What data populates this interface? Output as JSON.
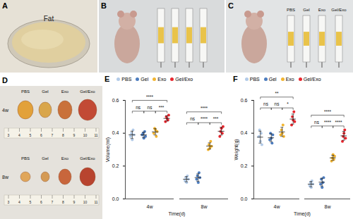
{
  "panels": {
    "A": {
      "label": "A",
      "text": "Fat"
    },
    "B": {
      "label": "B"
    },
    "C": {
      "label": "C",
      "syringe_labels": [
        "PBS",
        "Gel",
        "Exo",
        "Gel/Exo"
      ]
    },
    "D": {
      "label": "D",
      "groups": [
        "PBS",
        "Gel",
        "Exo",
        "Gel/Exo"
      ],
      "rows": [
        "4w",
        "8w"
      ],
      "ruler_labels": [
        [
          "3",
          "4",
          "5",
          "6",
          "7",
          "8",
          "9",
          "10",
          "11"
        ],
        [
          "3",
          "4",
          "5",
          "6",
          "7",
          "8",
          "9",
          "10",
          "11"
        ]
      ]
    }
  },
  "chart_data": [
    {
      "type": "scatter",
      "title": "E",
      "x_label": "Time(d)",
      "y_label": "Volume(ml)",
      "categories": [
        "4w",
        "8w"
      ],
      "series": [
        {
          "name": "PBS",
          "color": "#b3cbe8",
          "values": [
            [
              0.38,
              0.4,
              0.36,
              0.42,
              0.39
            ],
            [
              0.11,
              0.13,
              0.1,
              0.14,
              0.12
            ]
          ]
        },
        {
          "name": "Gel",
          "color": "#4d7dbf",
          "values": [
            [
              0.39,
              0.4,
              0.37,
              0.41,
              0.38
            ],
            [
              0.12,
              0.14,
              0.1,
              0.16,
              0.13
            ]
          ]
        },
        {
          "name": "Exo",
          "color": "#f2b531",
          "values": [
            [
              0.4,
              0.43,
              0.42,
              0.38,
              0.41
            ],
            [
              0.3,
              0.33,
              0.31,
              0.35,
              0.32
            ]
          ]
        },
        {
          "name": "Gel/Exo",
          "color": "#e8262e",
          "values": [
            [
              0.47,
              0.5,
              0.49,
              0.48,
              0.51
            ],
            [
              0.38,
              0.41,
              0.43,
              0.4,
              0.44
            ]
          ]
        }
      ],
      "ylim": [
        0,
        0.6
      ],
      "yticks": [
        {
          "value": 0,
          "label": "0.0"
        },
        0.2,
        0.4,
        0.6
      ],
      "annotations": [
        {
          "category": "4w",
          "from": "PBS",
          "to": "Gel/Exo",
          "label": "****"
        },
        {
          "category": "4w",
          "from": "PBS",
          "to": "Gel",
          "label": "ns"
        },
        {
          "category": "4w",
          "from": "Gel",
          "to": "Exo",
          "label": "ns"
        },
        {
          "category": "4w",
          "from": "Exo",
          "to": "Gel/Exo",
          "label": "***"
        },
        {
          "category": "8w",
          "from": "PBS",
          "to": "Gel/Exo",
          "label": "****"
        },
        {
          "category": "8w",
          "from": "PBS",
          "to": "Gel",
          "label": "ns"
        },
        {
          "category": "8w",
          "from": "Gel",
          "to": "Exo",
          "label": "****"
        },
        {
          "category": "8w",
          "from": "Exo",
          "to": "Gel/Exo",
          "label": "***"
        }
      ]
    },
    {
      "type": "scatter",
      "title": "F",
      "x_label": "Time(d)",
      "y_label": "Weight(g)",
      "categories": [
        "4w",
        "8w"
      ],
      "series": [
        {
          "name": "PBS",
          "color": "#b3cbe8",
          "values": [
            [
              0.38,
              0.42,
              0.35,
              0.4,
              0.33
            ],
            [
              0.08,
              0.1,
              0.07,
              0.11,
              0.09
            ]
          ]
        },
        {
          "name": "Gel",
          "color": "#4d7dbf",
          "values": [
            [
              0.36,
              0.4,
              0.37,
              0.34,
              0.39
            ],
            [
              0.09,
              0.12,
              0.07,
              0.1,
              0.13
            ]
          ]
        },
        {
          "name": "Exo",
          "color": "#f2b531",
          "values": [
            [
              0.39,
              0.42,
              0.4,
              0.45,
              0.38
            ],
            [
              0.23,
              0.25,
              0.27,
              0.24,
              0.26
            ]
          ]
        },
        {
          "name": "Gel/Exo",
          "color": "#e8262e",
          "values": [
            [
              0.45,
              0.5,
              0.48,
              0.53,
              0.47
            ],
            [
              0.35,
              0.38,
              0.4,
              0.42,
              0.37
            ]
          ]
        }
      ],
      "ylim": [
        0,
        0.6
      ],
      "yticks": [
        {
          "value": 0,
          "label": "0.0"
        },
        0.2,
        0.4,
        0.6
      ],
      "annotations": [
        {
          "category": "4w",
          "from": "PBS",
          "to": "Gel/Exo",
          "label": "**"
        },
        {
          "category": "4w",
          "from": "PBS",
          "to": "Gel",
          "label": "ns"
        },
        {
          "category": "4w",
          "from": "Gel",
          "to": "Exo",
          "label": "ns"
        },
        {
          "category": "4w",
          "from": "Exo",
          "to": "Gel/Exo",
          "label": "*"
        },
        {
          "category": "8w",
          "from": "PBS",
          "to": "Gel/Exo",
          "label": "****"
        },
        {
          "category": "8w",
          "from": "PBS",
          "to": "Gel",
          "label": "ns"
        },
        {
          "category": "8w",
          "from": "Gel",
          "to": "Exo",
          "label": "****"
        },
        {
          "category": "8w",
          "from": "Exo",
          "to": "Gel/Exo",
          "label": "****"
        }
      ]
    }
  ]
}
